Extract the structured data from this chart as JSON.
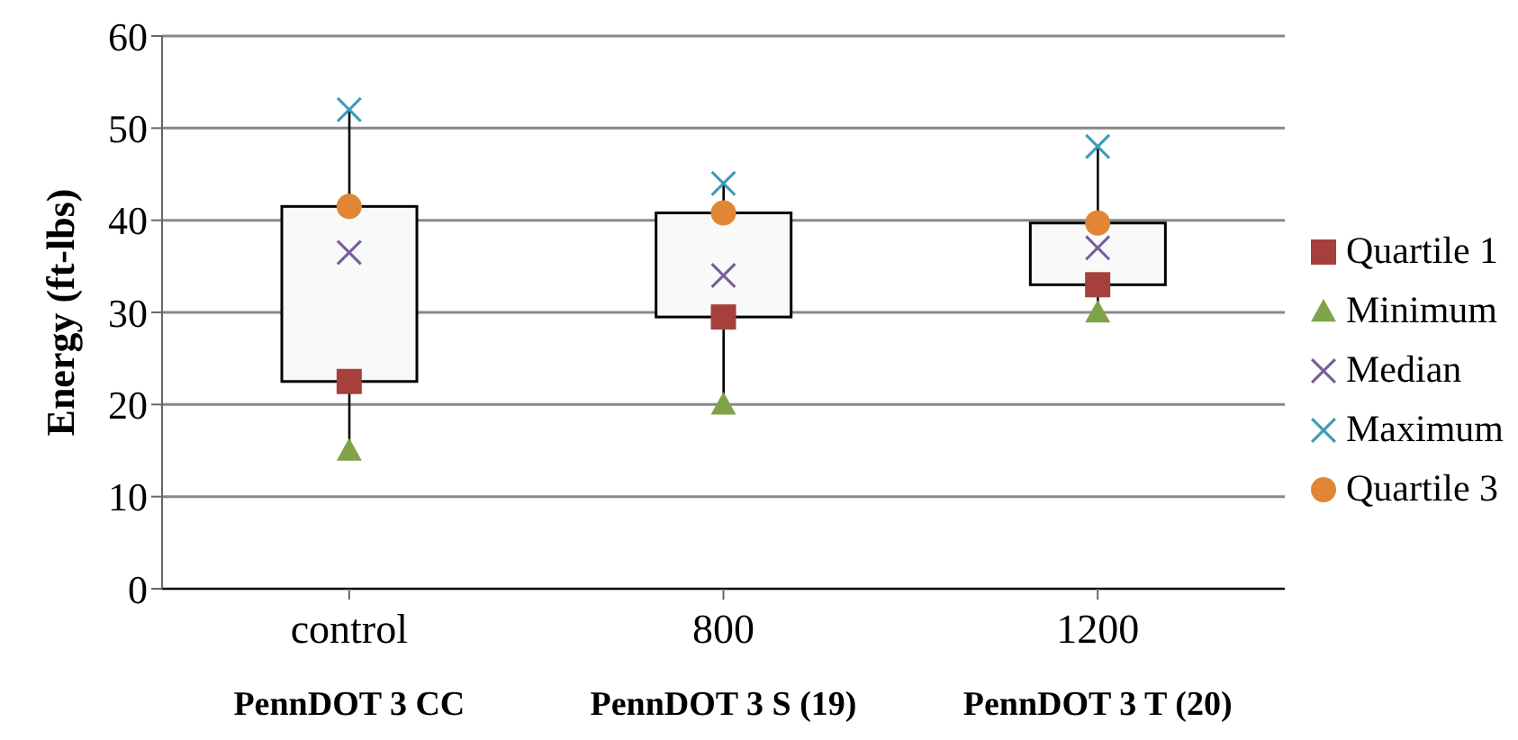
{
  "chart_data": {
    "type": "box",
    "ylabel": "Energy (ft-lbs)",
    "categories": [
      "control\nPennDOT 3 CC",
      "800\nPennDOT 3 S (19)",
      "1200\nPennDOT 3 T (20)"
    ],
    "boxes": [
      {
        "low": 15,
        "q1": 22.5,
        "q3": 41.5,
        "high": 52
      },
      {
        "low": 20,
        "q1": 29.5,
        "q3": 40.8,
        "high": 44
      },
      {
        "low": 30,
        "q1": 33,
        "q3": 39.7,
        "high": 48
      }
    ],
    "series": [
      {
        "type": "scatter",
        "name": "Quartile 1",
        "color": "#a5403d",
        "marker": "square",
        "values": [
          22.5,
          29.5,
          33
        ]
      },
      {
        "type": "scatter",
        "name": "Minimum",
        "color": "#7fa346",
        "marker": "triangle",
        "values": [
          15,
          20,
          30
        ]
      },
      {
        "type": "scatter",
        "name": "Median",
        "color": "#7a5c9c",
        "marker": "cross",
        "values": [
          36.5,
          34,
          37
        ]
      },
      {
        "type": "scatter",
        "name": "Maximum",
        "color": "#3c9cb8",
        "marker": "cross",
        "values": [
          52,
          44,
          48
        ]
      },
      {
        "type": "scatter",
        "name": "Quartile 3",
        "color": "#e08634",
        "marker": "circle",
        "values": [
          41.5,
          40.8,
          39.7
        ]
      }
    ],
    "ylim": [
      0,
      60
    ],
    "yticks": [
      0,
      10,
      20,
      30,
      40,
      50,
      60
    ],
    "grid": "y",
    "legend": "right"
  }
}
